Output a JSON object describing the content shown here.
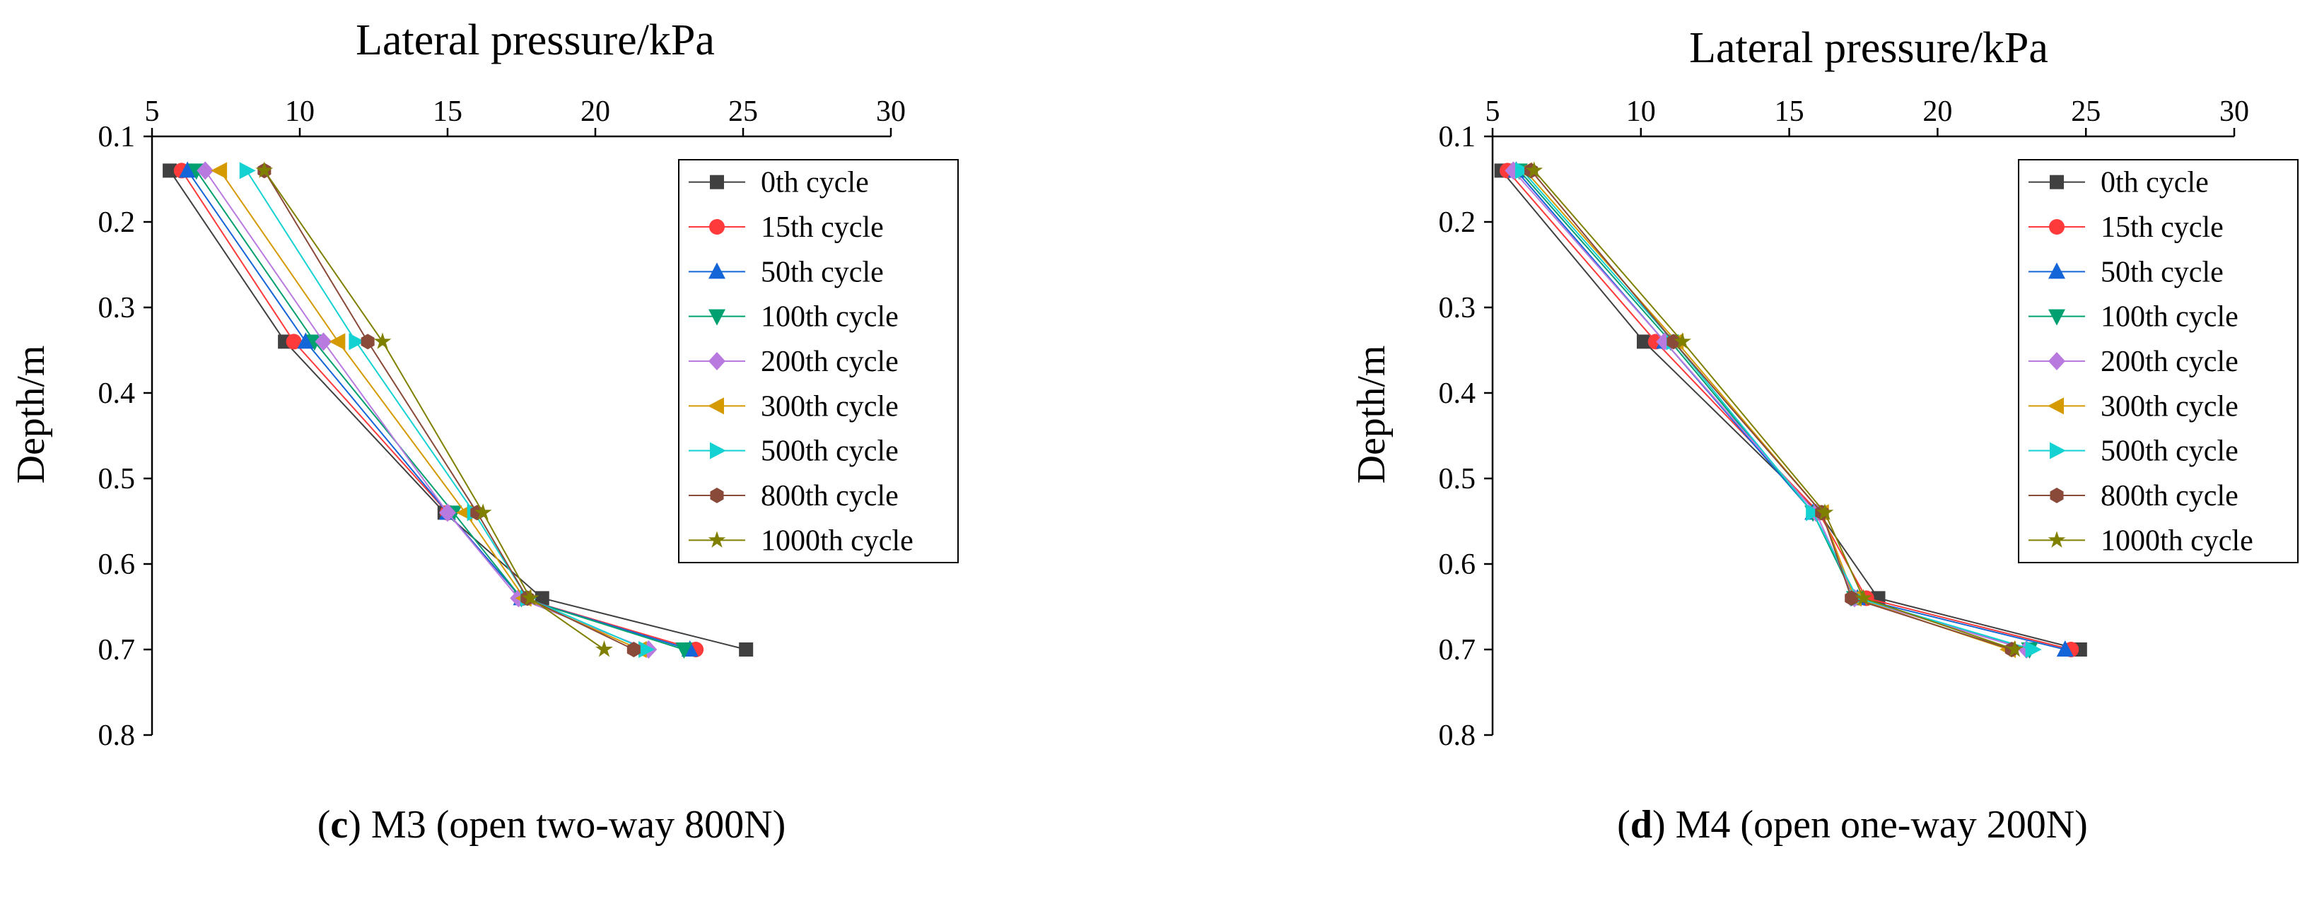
{
  "chart_data": [
    {
      "type": "line",
      "panel_id": "c",
      "xlabel": "Lateral pressure/kPa",
      "ylabel": "Depth/m",
      "xlim": [
        5,
        30
      ],
      "ylim": [
        0.1,
        0.8
      ],
      "xticks": [
        "5",
        "10",
        "15",
        "20",
        "25",
        "30"
      ],
      "yticks": [
        "0.1",
        "0.2",
        "0.3",
        "0.4",
        "0.5",
        "0.6",
        "0.7",
        "0.8"
      ],
      "depths": [
        0.14,
        0.34,
        0.54,
        0.64,
        0.7
      ],
      "legend_position": "top-right",
      "series": [
        {
          "name": "0th cycle",
          "values": [
            5.6,
            9.5,
            14.9,
            18.2,
            25.1
          ]
        },
        {
          "name": "15th cycle",
          "values": [
            6.0,
            9.8,
            15.0,
            17.5,
            23.4
          ]
        },
        {
          "name": "50th cycle",
          "values": [
            6.2,
            10.2,
            15.0,
            17.5,
            23.2
          ]
        },
        {
          "name": "100th cycle",
          "values": [
            6.5,
            10.5,
            15.2,
            17.5,
            23.0
          ]
        },
        {
          "name": "200th cycle",
          "values": [
            6.8,
            10.8,
            15.0,
            17.4,
            21.8
          ]
        },
        {
          "name": "300th cycle",
          "values": [
            7.3,
            11.3,
            15.6,
            17.6,
            21.5
          ]
        },
        {
          "name": "500th cycle",
          "values": [
            8.2,
            11.9,
            15.9,
            17.7,
            21.7
          ]
        },
        {
          "name": "800th cycle",
          "values": [
            8.8,
            12.3,
            16.0,
            17.7,
            21.3
          ]
        },
        {
          "name": "1000th cycle",
          "values": [
            8.8,
            12.8,
            16.2,
            17.8,
            20.3
          ]
        }
      ]
    },
    {
      "type": "line",
      "panel_id": "d",
      "xlabel": "Lateral pressure/kPa",
      "ylabel": "Depth/m",
      "xlim": [
        5,
        30
      ],
      "ylim": [
        0.1,
        0.8
      ],
      "xticks": [
        "5",
        "10",
        "15",
        "20",
        "25",
        "30"
      ],
      "yticks": [
        "0.1",
        "0.2",
        "0.3",
        "0.4",
        "0.5",
        "0.6",
        "0.7",
        "0.8"
      ],
      "depths": [
        0.14,
        0.34,
        0.54,
        0.64,
        0.7
      ],
      "legend_position": "top-right",
      "series": [
        {
          "name": "0th cycle",
          "values": [
            5.3,
            10.1,
            16.0,
            18.0,
            24.8
          ]
        },
        {
          "name": "15th cycle",
          "values": [
            5.5,
            10.5,
            16.0,
            17.6,
            24.5
          ]
        },
        {
          "name": "50th cycle",
          "values": [
            5.8,
            10.8,
            15.8,
            17.3,
            24.3
          ]
        },
        {
          "name": "100th cycle",
          "values": [
            5.9,
            11.0,
            15.8,
            17.2,
            23.1
          ]
        },
        {
          "name": "200th cycle",
          "values": [
            5.7,
            10.8,
            15.9,
            17.2,
            23.0
          ]
        },
        {
          "name": "300th cycle",
          "values": [
            6.1,
            11.2,
            16.1,
            17.2,
            22.4
          ]
        },
        {
          "name": "500th cycle",
          "values": [
            6.0,
            11.1,
            15.8,
            17.3,
            23.2
          ]
        },
        {
          "name": "800th cycle",
          "values": [
            6.3,
            11.1,
            16.1,
            17.1,
            22.5
          ]
        },
        {
          "name": "1000th cycle",
          "values": [
            6.4,
            11.4,
            16.2,
            17.5,
            22.6
          ]
        }
      ]
    }
  ],
  "series_styles": [
    {
      "color": "#404040",
      "marker": "square"
    },
    {
      "color": "#ff3a3a",
      "marker": "circle"
    },
    {
      "color": "#1465d8",
      "marker": "triangle-up"
    },
    {
      "color": "#00a070",
      "marker": "triangle-down"
    },
    {
      "color": "#b97ae0",
      "marker": "diamond"
    },
    {
      "color": "#d49a00",
      "marker": "triangle-left"
    },
    {
      "color": "#14d2d2",
      "marker": "triangle-right"
    },
    {
      "color": "#8a4a3a",
      "marker": "hexagon"
    },
    {
      "color": "#808000",
      "marker": "star"
    }
  ],
  "captions": {
    "c": {
      "letter": "c",
      "text": " M3 (open two-way 800N)"
    },
    "d": {
      "letter": "d",
      "text": " M4 (open one-way 200N)"
    }
  }
}
